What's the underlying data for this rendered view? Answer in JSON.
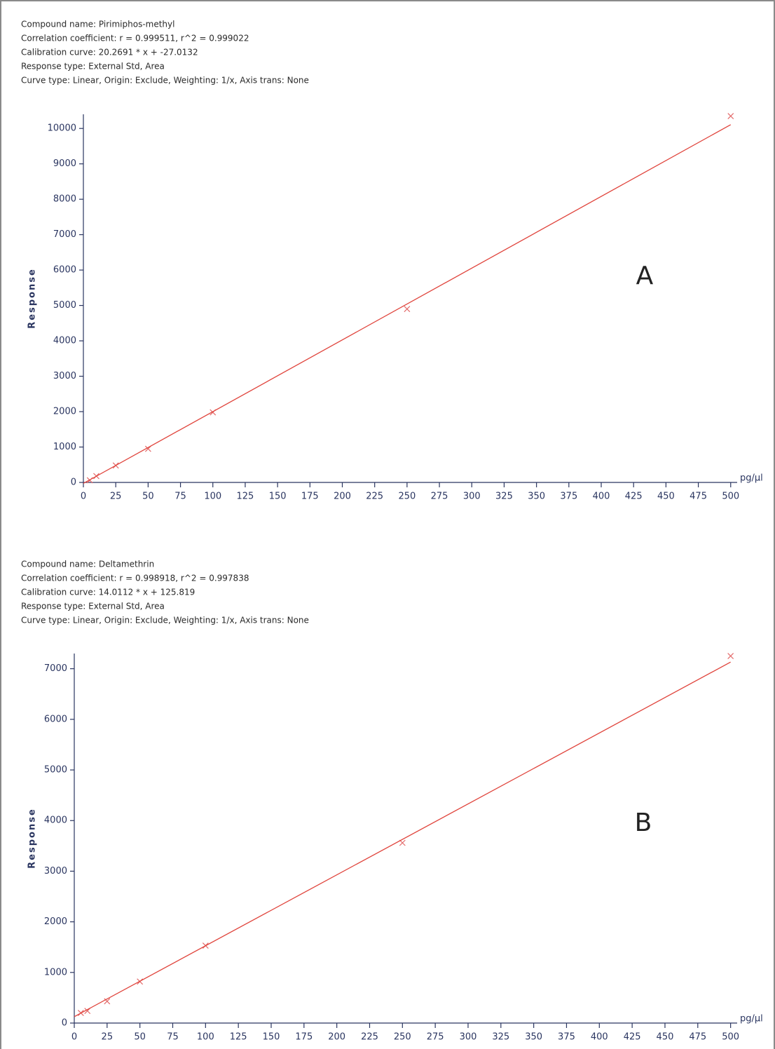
{
  "chart_data": [
    {
      "type": "scatter",
      "info_lines": [
        "Compound name: Pirimiphos-methyl",
        "Correlation coefficient: r = 0.999511, r^2 = 0.999022",
        "Calibration curve: 20.2691 * x + -27.0132",
        "Response type: External Std, Area",
        "Curve type: Linear, Origin: Exclude, Weighting: 1/x, Axis trans: None"
      ],
      "annotation": "A",
      "ylabel": "Response",
      "xunit": "pg/µl",
      "xlim": [
        0,
        505
      ],
      "ylim": [
        0,
        10400
      ],
      "xticks": [
        0,
        25,
        50,
        75,
        100,
        125,
        150,
        175,
        200,
        225,
        250,
        275,
        300,
        325,
        350,
        375,
        400,
        425,
        450,
        475,
        500
      ],
      "yticks": [
        0,
        1000,
        2000,
        3000,
        4000,
        5000,
        6000,
        7000,
        8000,
        9000,
        10000
      ],
      "series": [
        {
          "style": "markers",
          "color": "#e36a6a",
          "x": [
            5,
            10,
            25,
            50,
            100,
            250,
            500
          ],
          "values": [
            60,
            180,
            480,
            950,
            1980,
            4900,
            10350
          ]
        },
        {
          "style": "line",
          "color": "#e0443c",
          "x": [
            0,
            500
          ],
          "values": [
            -27,
            10107
          ]
        }
      ]
    },
    {
      "type": "scatter",
      "info_lines": [
        "Compound name: Deltamethrin",
        "Correlation coefficient: r = 0.998918, r^2 = 0.997838",
        "Calibration curve: 14.0112 * x + 125.819",
        "Response type: External Std, Area",
        "Curve type: Linear, Origin: Exclude, Weighting: 1/x, Axis trans: None"
      ],
      "annotation": "B",
      "ylabel": "Response",
      "xunit": "pg/µl",
      "xlim": [
        0,
        505
      ],
      "ylim": [
        0,
        7300
      ],
      "xticks": [
        0,
        25,
        50,
        75,
        100,
        125,
        150,
        175,
        200,
        225,
        250,
        275,
        300,
        325,
        350,
        375,
        400,
        425,
        450,
        475,
        500
      ],
      "yticks": [
        0,
        1000,
        2000,
        3000,
        4000,
        5000,
        6000,
        7000
      ],
      "series": [
        {
          "style": "markers",
          "color": "#e36a6a",
          "x": [
            5,
            10,
            25,
            50,
            100,
            250,
            500
          ],
          "values": [
            200,
            240,
            430,
            820,
            1530,
            3560,
            7250
          ]
        },
        {
          "style": "line",
          "color": "#e0443c",
          "x": [
            0,
            500
          ],
          "values": [
            126,
            7131
          ]
        }
      ]
    }
  ]
}
